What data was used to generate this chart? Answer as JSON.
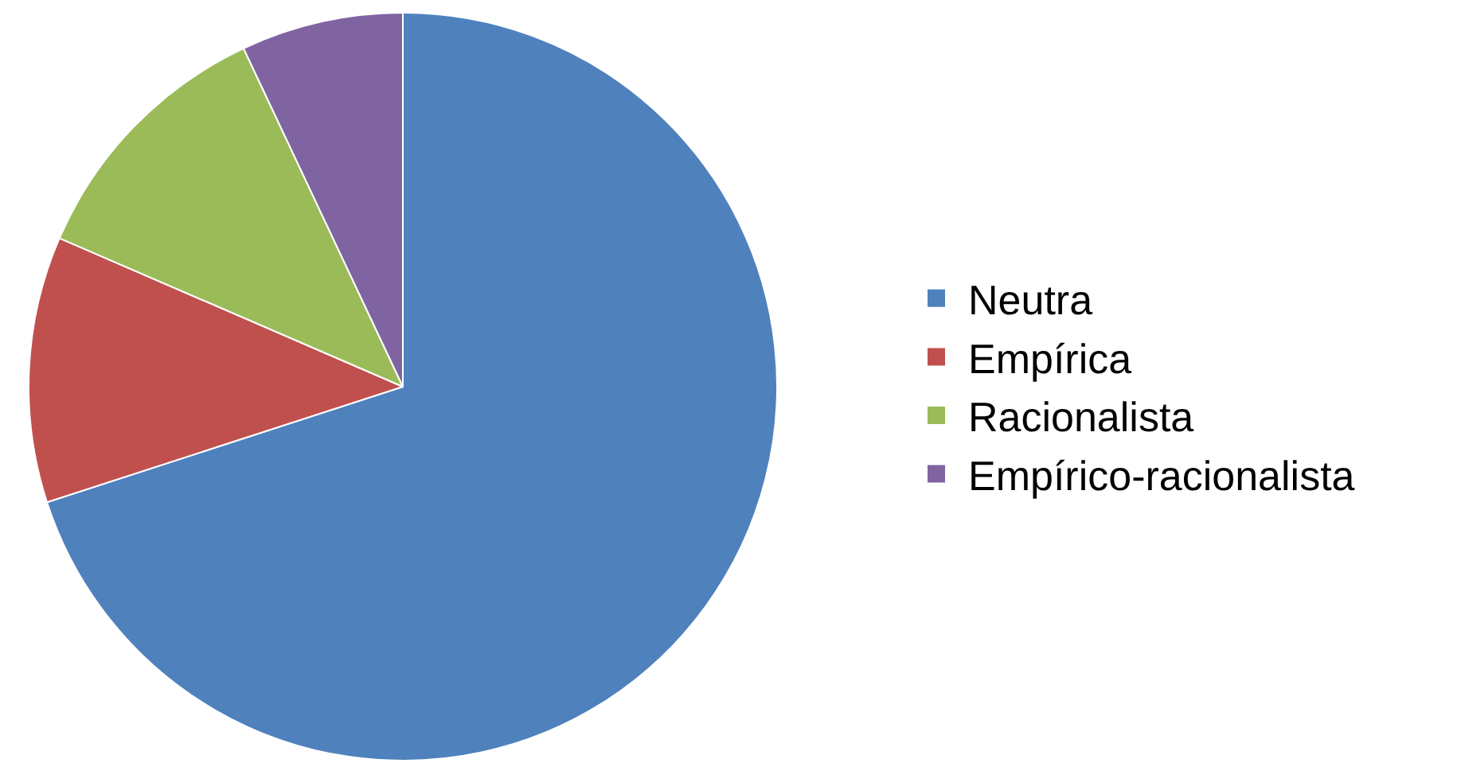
{
  "chart_data": {
    "type": "pie",
    "categories": [
      "Neutra",
      "Empírica",
      "Racionalista",
      "Empírico-racionalista"
    ],
    "values": [
      70,
      11.5,
      11.5,
      7
    ],
    "colors": [
      "#4f81bd",
      "#c0504d",
      "#9bbb59",
      "#8064a2"
    ],
    "legend": "right"
  }
}
